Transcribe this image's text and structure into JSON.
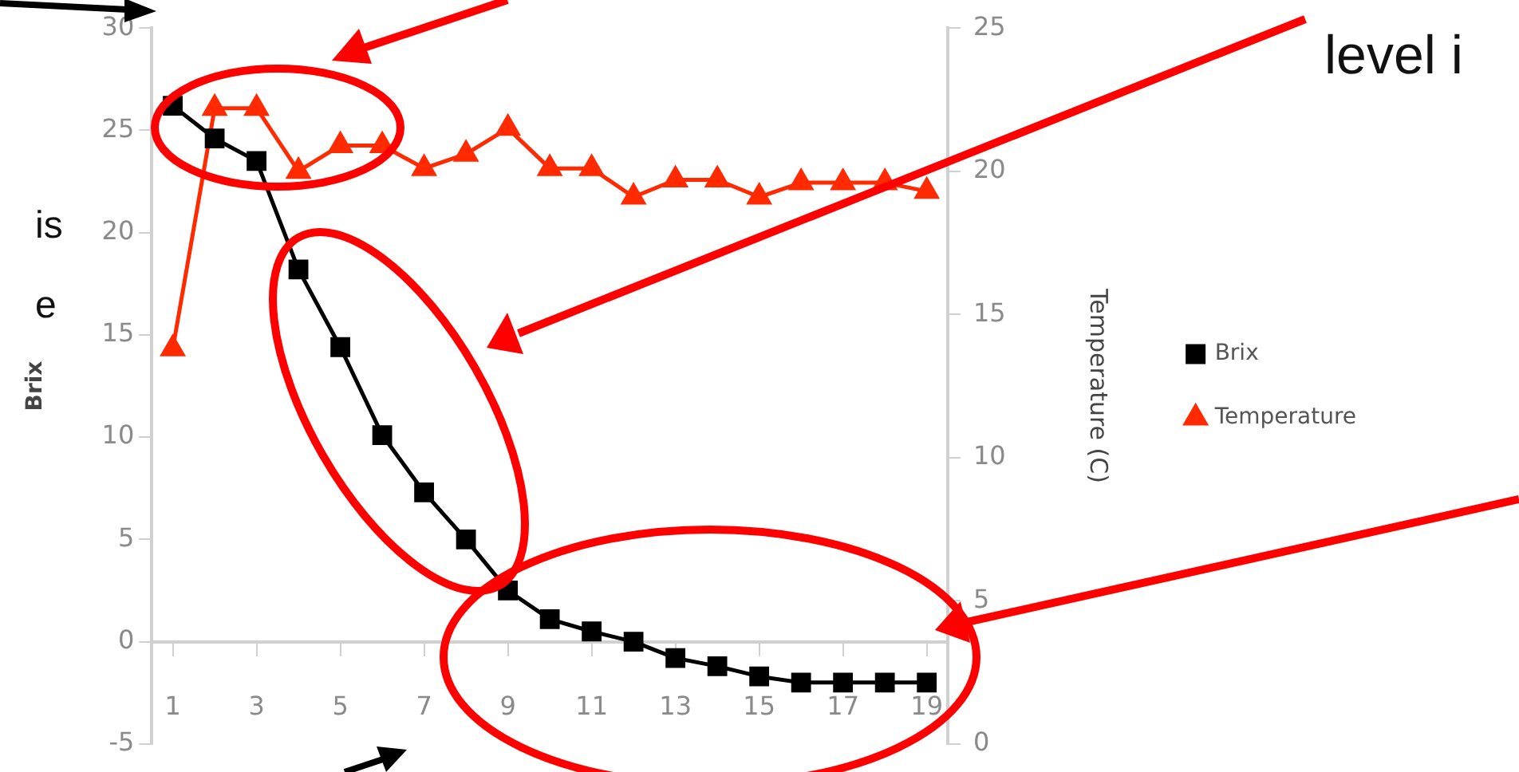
{
  "chart_data": {
    "type": "line",
    "ylabel": "Brix",
    "y2label": "Temperature (C)",
    "x": [
      1,
      2,
      3,
      4,
      5,
      6,
      7,
      8,
      9,
      10,
      11,
      12,
      13,
      14,
      15,
      16,
      17,
      18,
      19
    ],
    "xlim": [
      0.5,
      19.5
    ],
    "xticks": [
      1,
      3,
      5,
      7,
      9,
      11,
      13,
      15,
      17,
      19
    ],
    "ylim": [
      -5,
      30
    ],
    "yticks": [
      -5,
      0,
      5,
      10,
      15,
      20,
      25,
      30
    ],
    "y2lim": [
      0,
      25
    ],
    "y2ticks": [
      0,
      5,
      10,
      15,
      20,
      25
    ],
    "grid": false,
    "legend": "right",
    "line_style": "solid",
    "annotations": [
      "is",
      "e",
      "level i"
    ],
    "series": [
      {
        "name": "Brix",
        "color": "#000000",
        "marker": "square",
        "values": [
          26.2,
          24.6,
          23.5,
          18.2,
          14.4,
          10.1,
          7.3,
          5.0,
          2.5,
          1.1,
          0.5,
          0,
          -0.8,
          -1.2,
          -1.7,
          -2.0,
          -2.0,
          -2.0,
          -2.0
        ]
      },
      {
        "name": "Temperature",
        "color": "#ff2a00",
        "marker": "triangle",
        "axis": "y2",
        "values": [
          13.8,
          22.2,
          22.2,
          20.0,
          20.9,
          20.9,
          20.1,
          20.6,
          21.5,
          20.1,
          20.1,
          19.1,
          19.7,
          19.7,
          19.1,
          19.6,
          19.6,
          19.6,
          19.3
        ]
      }
    ]
  }
}
